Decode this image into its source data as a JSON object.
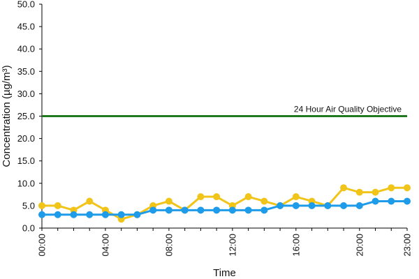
{
  "chart_data": {
    "type": "line",
    "xlabel": "Time",
    "ylabel": "Concentration (µg/m³)",
    "ylim": [
      0,
      50
    ],
    "y_ticks": [
      "0.0",
      "5.0",
      "10.0",
      "15.0",
      "20.0",
      "25.0",
      "30.0",
      "35.0",
      "40.0",
      "45.0",
      "50.0"
    ],
    "x": [
      0,
      1,
      2,
      3,
      4,
      5,
      6,
      7,
      8,
      9,
      10,
      11,
      12,
      13,
      14,
      15,
      16,
      17,
      18,
      19,
      20,
      21,
      22,
      23
    ],
    "x_ticks": [
      {
        "x": 0,
        "label": "00:00"
      },
      {
        "x": 4,
        "label": "04:00"
      },
      {
        "x": 8,
        "label": "08:00"
      },
      {
        "x": 12,
        "label": "12:00"
      },
      {
        "x": 16,
        "label": "16:00"
      },
      {
        "x": 20,
        "label": "20:00"
      },
      {
        "x": 23,
        "label": "23:00"
      }
    ],
    "series": [
      {
        "color": "#f0c419",
        "values": [
          5,
          5,
          4,
          6,
          4,
          2,
          3,
          5,
          6,
          4,
          7,
          7,
          5,
          7,
          6,
          5,
          7,
          6,
          5,
          9,
          8,
          8,
          9,
          9
        ]
      },
      {
        "color": "#1e9be9",
        "values": [
          3,
          3,
          3,
          3,
          3,
          3,
          3,
          4,
          4,
          4,
          4,
          4,
          4,
          4,
          4,
          5,
          5,
          5,
          5,
          5,
          5,
          6,
          6,
          6
        ]
      }
    ],
    "reference_line": {
      "value": 25,
      "label": "24 Hour Air Quality Objective",
      "color": "#1f7a1f"
    },
    "grid": false
  }
}
